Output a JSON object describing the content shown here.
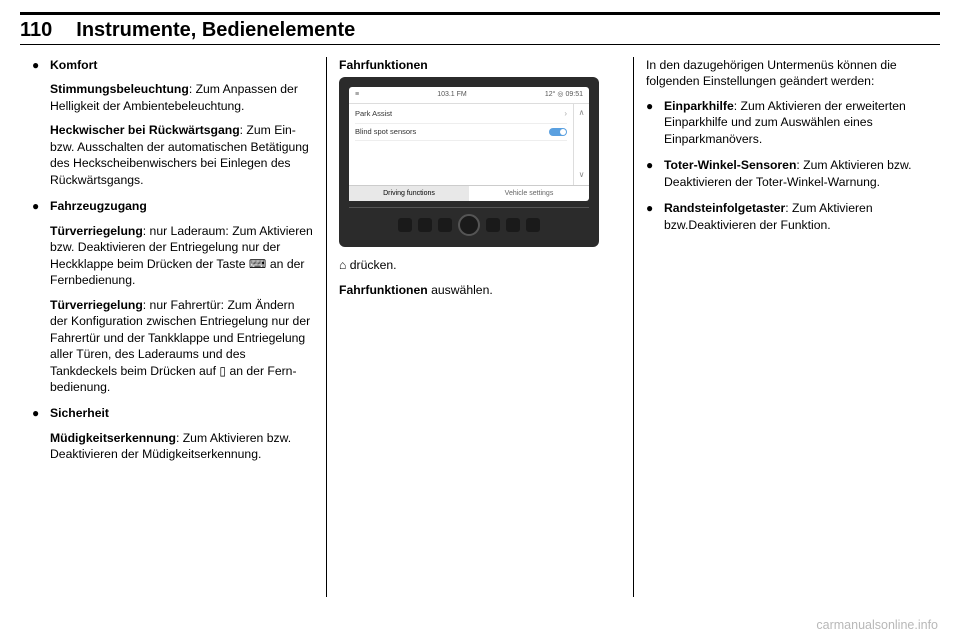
{
  "header": {
    "page_number": "110",
    "title": "Instrumente, Bedienelemente"
  },
  "col1": {
    "bullets": [
      {
        "head": "Komfort",
        "paras": [
          {
            "bold": "Stimmungsbeleuchtung",
            "rest": ": Zum Anpassen der Helligkeit der Ambientebeleuchtung."
          },
          {
            "bold": "Heckwischer bei Rückwärtsgang",
            "rest": ": Zum Ein- bzw. Ausschalten der automatischen Betätigung des Heckscheiben­wischers bei Einlegen des Rück­wärtsgangs."
          }
        ]
      },
      {
        "head": "Fahrzeugzugang",
        "paras": [
          {
            "bold": "Türverriegelung",
            "rest": ": nur Laderaum: Zum Aktivieren bzw. Deaktivie­ren der Entriegelung nur der Heckklappe beim Drücken der Taste ⌨ an der Fernbedienung."
          },
          {
            "bold": "Türverriegelung",
            "rest": ": nur Fahrertür: Zum Ändern der Konfiguration zwischen Entriegelung nur der Fahrertür und der Tankklappe und Entriegelung aller Türen, des Laderaums und des Tankdeckels beim Drücken auf ▯ an der Fern­bedienung."
          }
        ]
      },
      {
        "head": "Sicherheit",
        "paras": [
          {
            "bold": "Müdigkeitserkennung",
            "rest": ": Zum Akti­vieren bzw. Deaktivieren der Müdigkeitserkennung."
          }
        ]
      }
    ]
  },
  "col2": {
    "subhead": "Fahrfunktionen",
    "screen": {
      "top_left_icon": "≡",
      "top_radio": "103.1 FM",
      "top_temp": "12°",
      "top_sat_icon": "◎",
      "top_time": "09:51",
      "item1": "Park Assist",
      "item2": "Blind spot sensors",
      "tab1": "Driving functions",
      "tab2": "Vehicle settings",
      "scroll_up": "∧",
      "scroll_down": "∨"
    },
    "line1_pre": "⌂",
    "line1_rest": " drücken.",
    "line2_pre": "Fahrfunktionen",
    "line2_rest": " auswählen."
  },
  "col3": {
    "intro": "In den dazugehörigen Untermenüs können die folgenden Einstellungen geändert werden:",
    "bullets": [
      {
        "bold": "Einparkhilfe",
        "rest": ": Zum Aktivieren der erweiterten Einparkhilfe und zum Auswählen eines Einparkmanö­vers."
      },
      {
        "bold": "Toter-Winkel-Sensoren",
        "rest": ": Zum Aktivieren bzw. Deaktivieren der Toter-Winkel-Warnung."
      },
      {
        "bold": "Randsteinfolgetaster",
        "rest": ": Zum Akti­vieren bzw.Deaktivieren der Funktion."
      }
    ]
  },
  "watermark": "carmanualsonline.info"
}
